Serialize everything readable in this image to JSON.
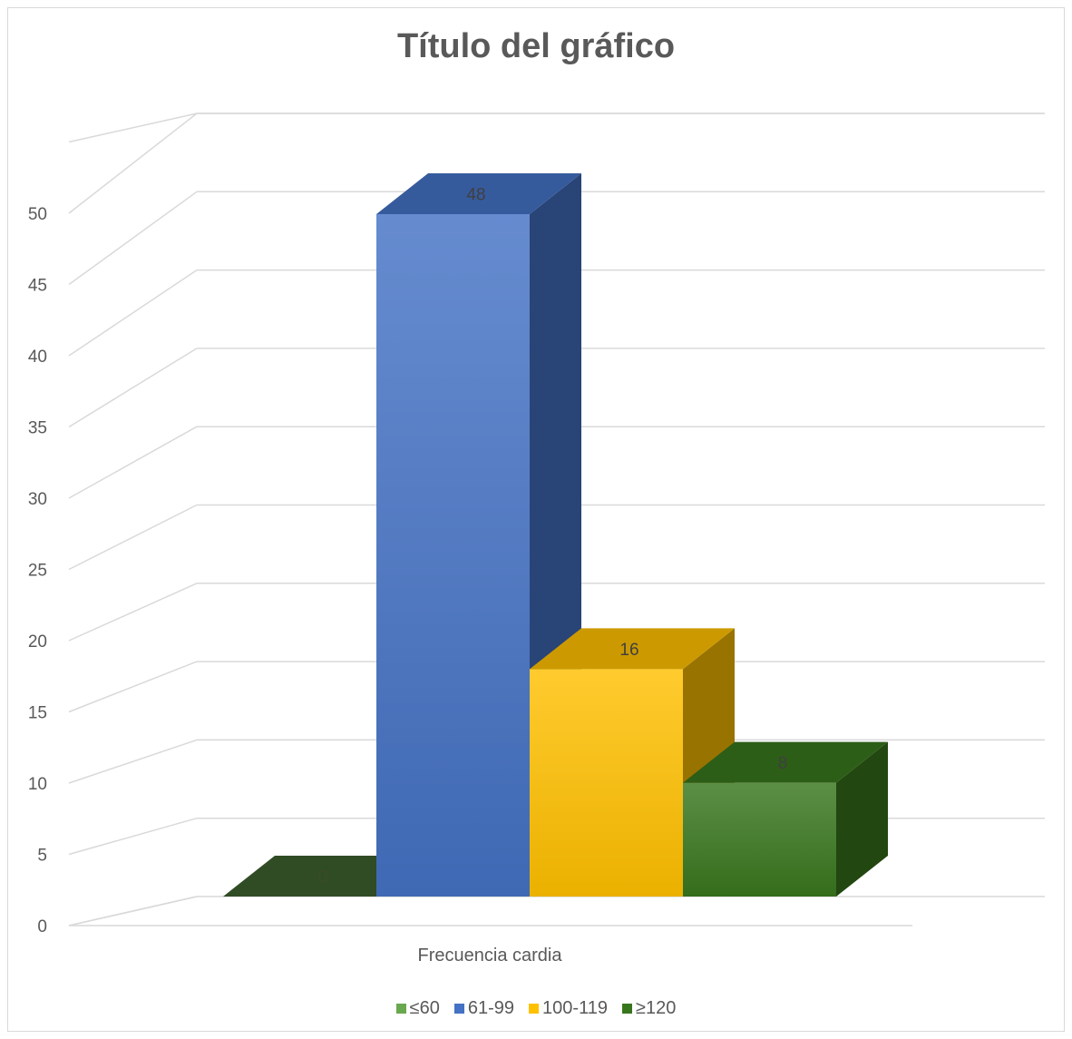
{
  "chart_data": {
    "type": "bar",
    "title": "Título del gráfico",
    "categories": [
      "Frecuencia cardia"
    ],
    "xlabel": "",
    "ylabel": "",
    "ylim": [
      0,
      50
    ],
    "y_ticks": [
      "0",
      "5",
      "10",
      "15",
      "20",
      "25",
      "30",
      "35",
      "40",
      "45",
      "50"
    ],
    "grid": true,
    "three_d": true,
    "legend_position": "bottom",
    "series": [
      {
        "name": "≤60",
        "values": [
          0
        ],
        "label": "0",
        "color": "#6aa84f"
      },
      {
        "name": "61-99",
        "values": [
          48
        ],
        "label": "48",
        "color": "#4472c4"
      },
      {
        "name": "100-119",
        "values": [
          16
        ],
        "label": "16",
        "color": "#ffc000"
      },
      {
        "name": "≥120",
        "values": [
          8
        ],
        "label": "8",
        "color": "#38761d"
      }
    ]
  }
}
